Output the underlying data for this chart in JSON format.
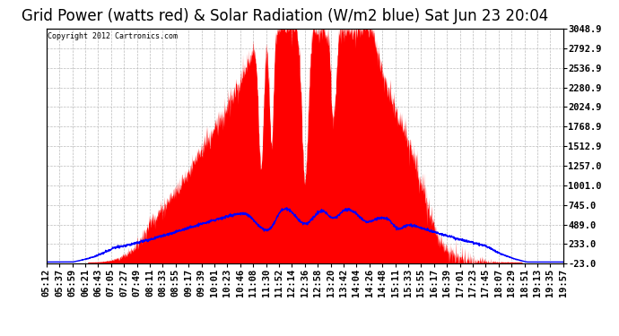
{
  "title": "Grid Power (watts red) & Solar Radiation (W/m2 blue) Sat Jun 23 20:04",
  "copyright": "Copyright 2012 Cartronics.com",
  "ymin": -23.0,
  "ymax": 3048.9,
  "yticks": [
    3048.9,
    2792.9,
    2536.9,
    2280.9,
    2024.9,
    1768.9,
    1512.9,
    1257.0,
    1001.0,
    745.0,
    489.0,
    233.0,
    -23.0
  ],
  "bg_color": "#ffffff",
  "plot_bg_color": "#ffffff",
  "grid_color": "#bbbbbb",
  "red_color": "#ff0000",
  "blue_color": "#0000ff",
  "title_fontsize": 12,
  "tick_fontsize": 7.5,
  "xtick_labels": [
    "05:12",
    "05:37",
    "05:59",
    "06:21",
    "06:43",
    "07:05",
    "07:27",
    "07:49",
    "08:11",
    "08:33",
    "08:55",
    "09:17",
    "09:39",
    "10:01",
    "10:23",
    "10:46",
    "11:08",
    "11:30",
    "11:52",
    "12:14",
    "12:36",
    "12:58",
    "13:20",
    "13:42",
    "14:04",
    "14:26",
    "14:48",
    "15:11",
    "15:33",
    "15:55",
    "16:17",
    "16:39",
    "17:01",
    "17:23",
    "17:45",
    "18:07",
    "18:29",
    "18:51",
    "19:13",
    "19:35",
    "19:57"
  ]
}
